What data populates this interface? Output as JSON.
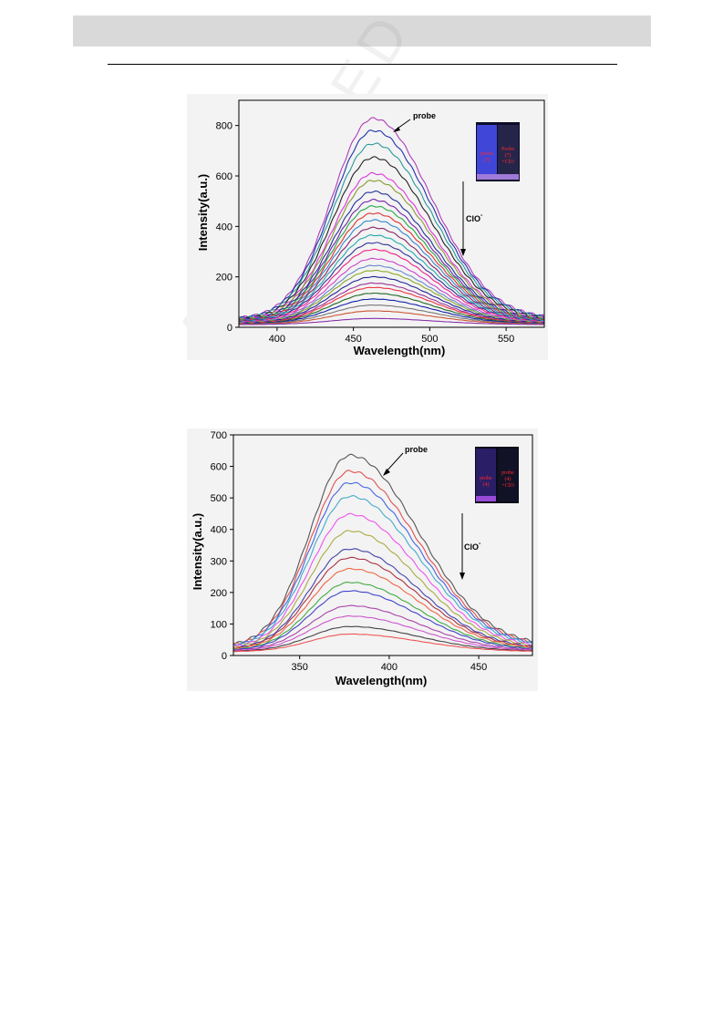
{
  "page": {
    "watermark": "ACCEPTED MANUSCRIPT"
  },
  "chart_data": [
    {
      "type": "line",
      "xlabel": "Wavelength(nm)",
      "ylabel": "Intensity(a.u.)",
      "xlim": [
        375,
        575
      ],
      "ylim": [
        0,
        900
      ],
      "xticks": [
        400,
        450,
        500,
        550
      ],
      "yticks": [
        0,
        200,
        400,
        600,
        800
      ],
      "peak_x": 463,
      "sigma_left": 27,
      "sigma_right": 38,
      "annotations": {
        "probe": "probe",
        "arrow_label": "ClO",
        "arrow_sup": "-"
      },
      "inset": {
        "left_line1": "probe",
        "left_line2": "(7)",
        "right_line1": "Probe",
        "right_line2": "(7)",
        "right_line3": "+ClO"
      },
      "series": [
        {
          "color": "#b03cb8",
          "peak": 828
        },
        {
          "color": "#2233aa",
          "peak": 780
        },
        {
          "color": "#2a9a9a",
          "peak": 728
        },
        {
          "color": "#222222",
          "peak": 673
        },
        {
          "color": "#dd33dd",
          "peak": 610
        },
        {
          "color": "#889a30",
          "peak": 582
        },
        {
          "color": "#223399",
          "peak": 538
        },
        {
          "color": "#7722aa",
          "peak": 505
        },
        {
          "color": "#22aa44",
          "peak": 480
        },
        {
          "color": "#dd3333",
          "peak": 452
        },
        {
          "color": "#3388cc",
          "peak": 425
        },
        {
          "color": "#882266",
          "peak": 395
        },
        {
          "color": "#22aaaa",
          "peak": 365
        },
        {
          "color": "#333399",
          "peak": 335
        },
        {
          "color": "#ee2288",
          "peak": 308
        },
        {
          "color": "#cc44cc",
          "peak": 272
        },
        {
          "color": "#6688cc",
          "peak": 245
        },
        {
          "color": "#88aa22",
          "peak": 225
        },
        {
          "color": "#222299",
          "peak": 200
        },
        {
          "color": "#993399",
          "peak": 175
        },
        {
          "color": "#ee3344",
          "peak": 158
        },
        {
          "color": "#226622",
          "peak": 135
        },
        {
          "color": "#1122aa",
          "peak": 112
        },
        {
          "color": "#777777",
          "peak": 88
        },
        {
          "color": "#cc5533",
          "peak": 65
        },
        {
          "color": "#8833aa",
          "peak": 35
        }
      ]
    },
    {
      "type": "line",
      "xlabel": "Wavelength(nm)",
      "ylabel": "Intensity(a.u.)",
      "xlim": [
        313,
        480
      ],
      "ylim": [
        0,
        700
      ],
      "xticks": [
        350,
        400,
        450
      ],
      "yticks": [
        0,
        100,
        200,
        300,
        400,
        500,
        600,
        700
      ],
      "peak_x": 378,
      "sigma_left": 22,
      "sigma_right": 38,
      "annotations": {
        "probe": "probe",
        "arrow_label": "ClO",
        "arrow_sup": "-"
      },
      "inset": {
        "left_line1": "probe",
        "left_line2": "(4)",
        "right_line1": "probe",
        "right_line2": "(4)",
        "right_line3": "+ClO"
      },
      "series": [
        {
          "color": "#555555",
          "peak": 635
        },
        {
          "color": "#e05050",
          "peak": 585
        },
        {
          "color": "#4466dd",
          "peak": 548
        },
        {
          "color": "#44aacc",
          "peak": 505
        },
        {
          "color": "#ee55ee",
          "peak": 448
        },
        {
          "color": "#aaaa44",
          "peak": 395
        },
        {
          "color": "#4444aa",
          "peak": 338
        },
        {
          "color": "#aa3344",
          "peak": 310
        },
        {
          "color": "#ee6644",
          "peak": 275
        },
        {
          "color": "#44aa44",
          "peak": 232
        },
        {
          "color": "#4444cc",
          "peak": 205
        },
        {
          "color": "#aa44aa",
          "peak": 158
        },
        {
          "color": "#cc55cc",
          "peak": 125
        },
        {
          "color": "#444444",
          "peak": 92
        },
        {
          "color": "#ee5555",
          "peak": 68
        }
      ]
    }
  ]
}
